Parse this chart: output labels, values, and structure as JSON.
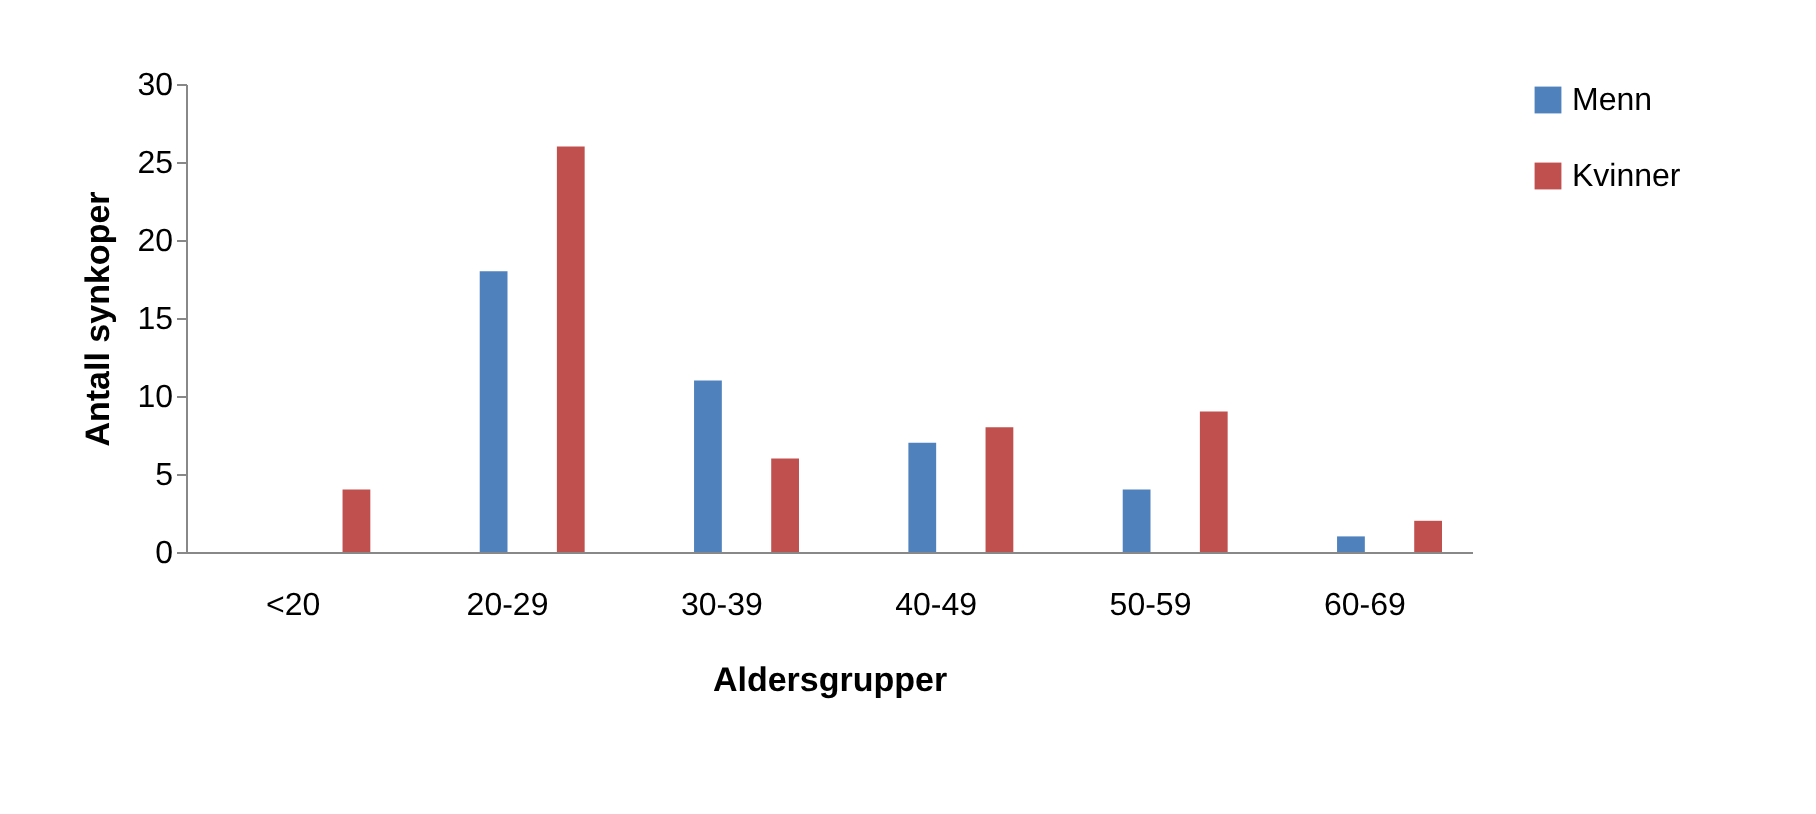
{
  "chart_data": {
    "type": "bar",
    "xlabel": "Aldersgrupper",
    "ylabel": "Antall synkoper",
    "categories": [
      "<20",
      "20-29",
      "30-39",
      "40-49",
      "50-59",
      "60-69"
    ],
    "series": [
      {
        "name": "Menn",
        "color": "#4f81bd",
        "values": [
          0,
          18,
          11,
          7,
          4,
          1
        ]
      },
      {
        "name": "Kvinner",
        "color": "#c0504d",
        "values": [
          4,
          26,
          6,
          8,
          9,
          2
        ]
      }
    ],
    "ylim": [
      0,
      30
    ],
    "yticks": [
      0,
      5,
      10,
      15,
      20,
      25,
      30
    ],
    "grid": false,
    "legend": "right"
  }
}
